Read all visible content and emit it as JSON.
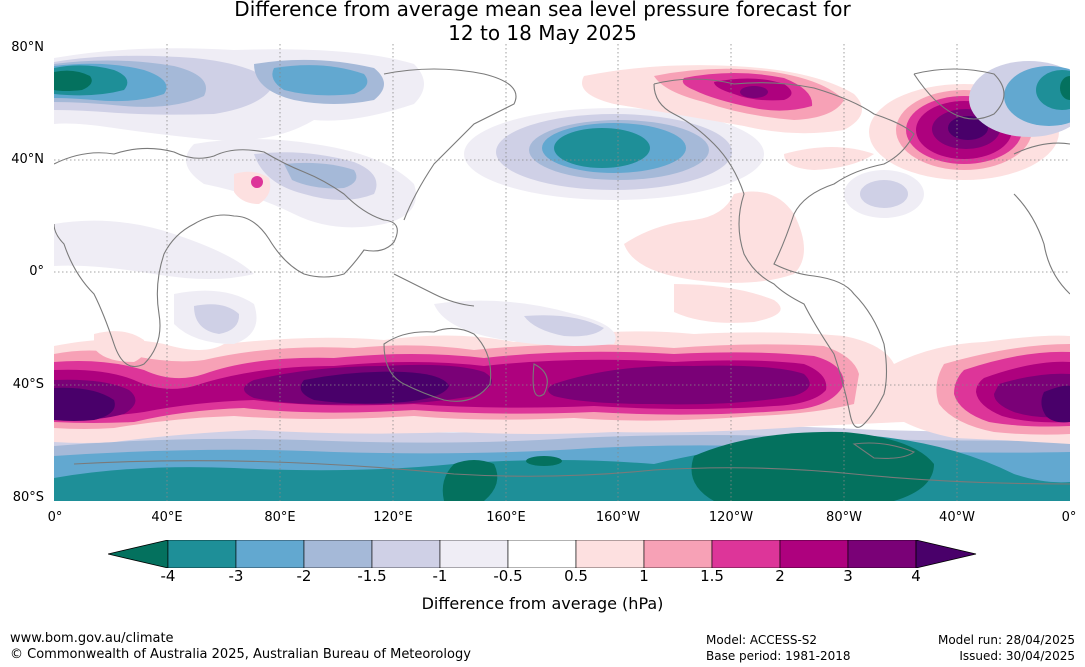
{
  "title": {
    "line1": "Difference from average mean sea level pressure forecast for",
    "line2": "12 to 18 May 2025"
  },
  "lat_labels": [
    "80°N",
    "40°N",
    "0°",
    "40°S",
    "80°S"
  ],
  "lon_labels": [
    "0°",
    "40°E",
    "80°E",
    "120°E",
    "160°E",
    "160°W",
    "120°W",
    "80°W",
    "40°W",
    "0°"
  ],
  "colorbar": {
    "ticks": [
      "-4",
      "-3",
      "-2",
      "-1.5",
      "-1",
      "-0.5",
      "0.5",
      "1",
      "1.5",
      "2",
      "3",
      "4"
    ],
    "colors": [
      "#04715e",
      "#1e8f98",
      "#62a8d0",
      "#a5b9d8",
      "#cfd0e6",
      "#efedf5",
      "#ffffff",
      "#fde0e0",
      "#f7a1b6",
      "#dd3599",
      "#ae017e",
      "#7a0177",
      "#49006a"
    ],
    "label": "Difference from average (hPa)"
  },
  "footer": {
    "url": "www.bom.gov.au/climate",
    "copyright": "© Commonwealth of Australia 2025, Australian Bureau of Meteorology",
    "model": "Model: ACCESS-S2",
    "base_period": "Base period: 1981-2018",
    "model_run": "Model run: 28/04/2025",
    "issued": "Issued: 30/04/2025"
  }
}
